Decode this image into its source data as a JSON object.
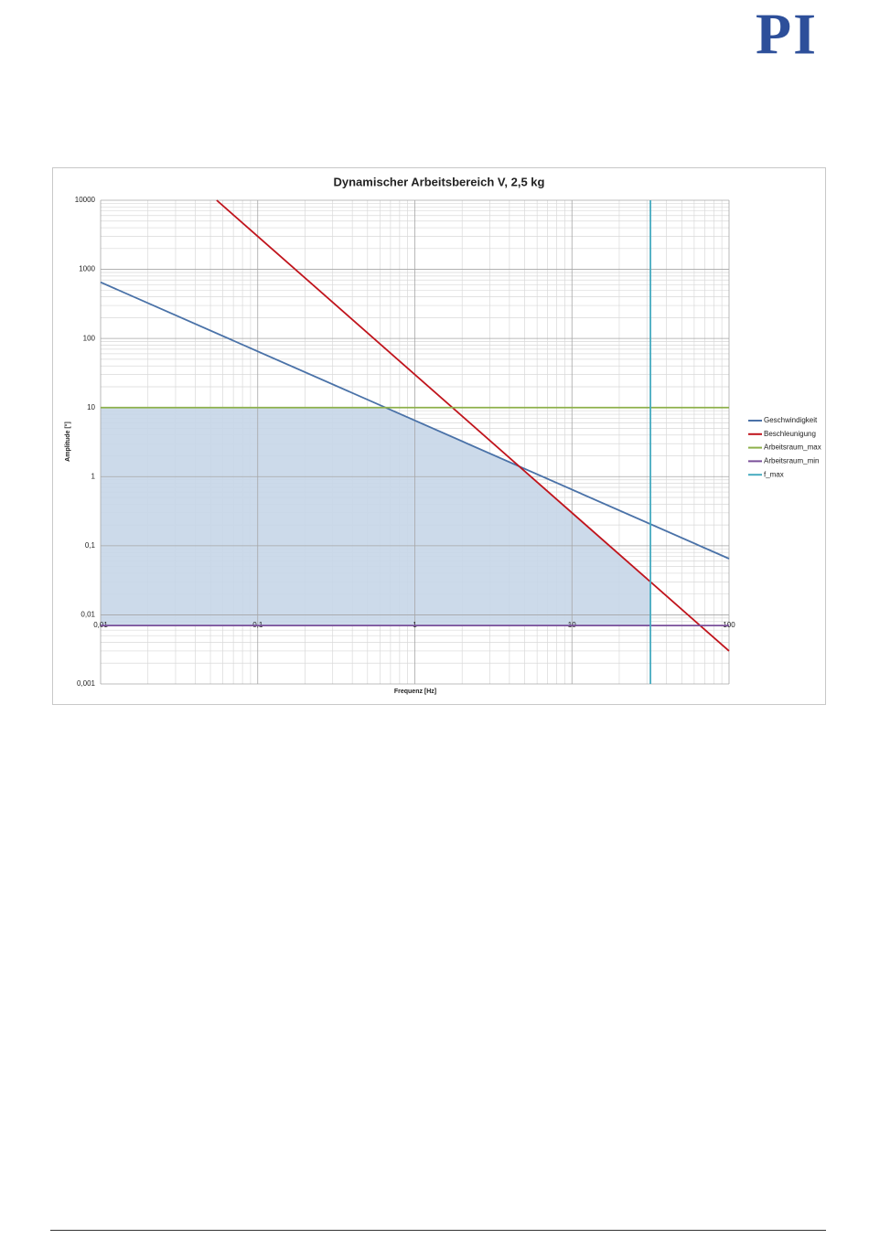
{
  "logo": "PI",
  "chart_data": {
    "type": "line",
    "title": "Dynamischer Arbeitsbereich V, 2,5 kg",
    "x_label": "Frequenz [Hz]",
    "y_label": "Amplitude [°]",
    "log_x": true,
    "log_y": true,
    "grid": true,
    "minor_grid": true,
    "legend": "right",
    "xlim": [
      0.01,
      100
    ],
    "ylim": [
      0.001,
      10000
    ],
    "xticks": [
      {
        "value": 0.01,
        "label": "0,01"
      },
      {
        "value": 0.1,
        "label": "0,1"
      },
      1,
      10,
      100
    ],
    "yticks": [
      {
        "value": 0.001,
        "label": "0,001"
      },
      {
        "value": 0.01,
        "label": "0,01"
      },
      {
        "value": 0.1,
        "label": "0,1"
      },
      1,
      10,
      100,
      1000,
      10000
    ],
    "area": {
      "color": "#c6d6e8",
      "x": [
        0.01,
        0.65,
        4.615,
        31.6
      ],
      "values": [
        10,
        10,
        1.408,
        0.03
      ],
      "base": 0.007
    },
    "series": [
      {
        "name": "Geschwindigkeit",
        "color": "#4a72a8",
        "x": [
          0.01,
          100
        ],
        "values": [
          650,
          0.065
        ]
      },
      {
        "name": "Beschleunigung",
        "color": "#c0141c",
        "x": [
          0.0548,
          100
        ],
        "values": [
          10000,
          0.003
        ]
      },
      {
        "name": "Arbeitsraum_max",
        "color": "#8db04a",
        "x": [
          0.01,
          100
        ],
        "values": [
          10,
          10
        ]
      },
      {
        "name": "Arbeitsraum_min",
        "color": "#7a4f9a",
        "x": [
          0.01,
          100
        ],
        "values": [
          0.007,
          0.007
        ]
      },
      {
        "name": "f_max",
        "color": "#46abc0",
        "x": [
          31.6,
          31.6
        ],
        "values": [
          0.001,
          10000
        ]
      }
    ]
  }
}
